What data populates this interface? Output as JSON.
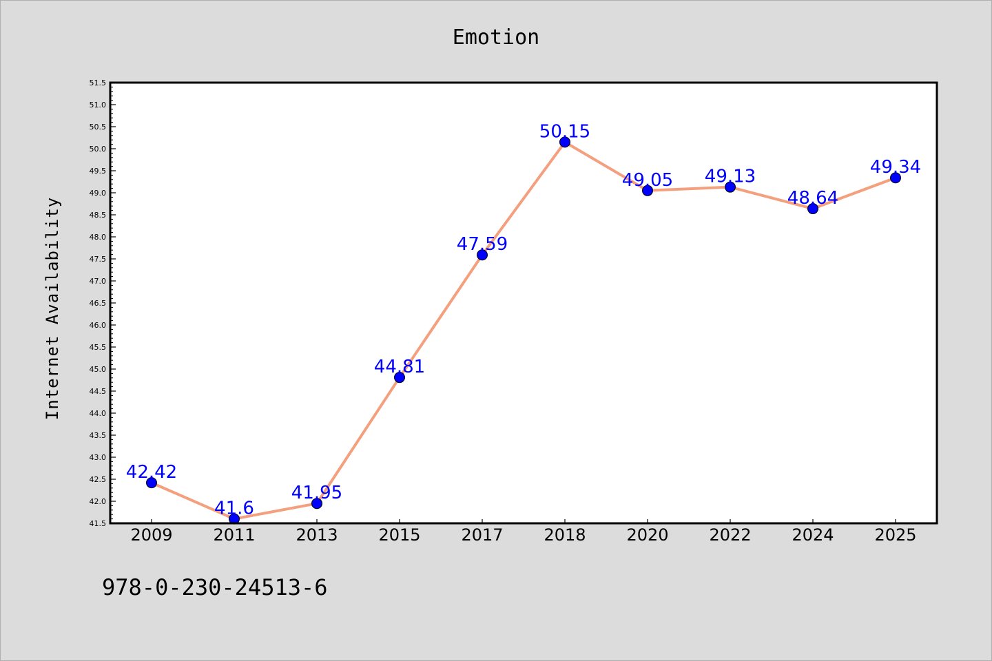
{
  "chart_data": {
    "type": "line",
    "title": "Emotion",
    "xlabel": "",
    "ylabel": "Internet Availability",
    "categories": [
      "2009",
      "2011",
      "2013",
      "2015",
      "2017",
      "2018",
      "2020",
      "2022",
      "2024",
      "2025"
    ],
    "series": [
      {
        "values": [
          42.42,
          41.6,
          41.95,
          44.81,
          47.59,
          50.15,
          49.05,
          49.13,
          48.64,
          49.34
        ]
      }
    ],
    "data_labels": [
      "42.42",
      "41.6",
      "41.95",
      "44.81",
      "47.59",
      "50.15",
      "49.05",
      "49.13",
      "48.64",
      "49.34"
    ],
    "ylim": [
      41.5,
      51.5
    ],
    "yticks": [
      "41.5",
      "42.0",
      "42.5",
      "43.0",
      "43.5",
      "44.0",
      "44.5",
      "45.0",
      "45.5",
      "46.0",
      "46.5",
      "47.0",
      "47.5",
      "48.0",
      "48.5",
      "49.0",
      "49.5",
      "50.0",
      "50.5",
      "51.0",
      "51.5"
    ],
    "grid": false,
    "legend": "none",
    "colors": {
      "line": "#f4a07f",
      "marker": "#0000ff",
      "label": "#0000ff",
      "background": "#dcdcdc",
      "plot_background": "#ffffff"
    }
  },
  "footnote": "978-0-230-24513-6"
}
